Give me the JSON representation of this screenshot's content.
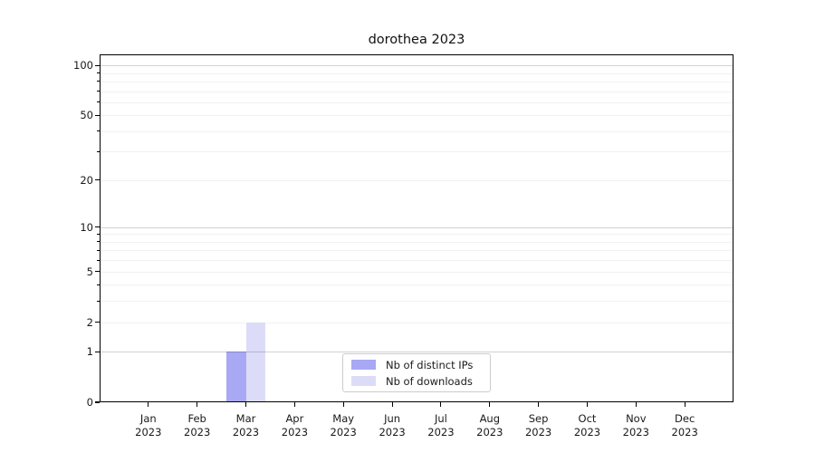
{
  "chart_data": {
    "type": "bar",
    "title": "dorothea 2023",
    "categories_month": [
      "Jan",
      "Feb",
      "Mar",
      "Apr",
      "May",
      "Jun",
      "Jul",
      "Aug",
      "Sep",
      "Oct",
      "Nov",
      "Dec"
    ],
    "categories_year": "2023",
    "series": [
      {
        "name": "Nb of distinct IPs",
        "color": "#a8a8f5",
        "values": [
          0,
          0,
          1,
          0,
          0,
          0,
          0,
          0,
          0,
          0,
          0,
          0
        ]
      },
      {
        "name": "Nb of downloads",
        "color": "#dcdcf9",
        "values": [
          0,
          0,
          2,
          0,
          0,
          0,
          0,
          0,
          0,
          0,
          0,
          0
        ]
      }
    ],
    "y_scale": "log1p",
    "y_ticks_labeled": [
      0,
      1,
      2,
      5,
      10,
      20,
      50,
      100
    ],
    "y_major_grid": [
      1,
      10,
      100
    ],
    "y_minor_grid": [
      2,
      3,
      4,
      5,
      6,
      7,
      8,
      9,
      20,
      30,
      40,
      50,
      60,
      70,
      80,
      90
    ],
    "ylim": [
      0,
      116.3
    ],
    "grid": true,
    "legend_position": "lower center"
  },
  "style": {
    "background": "#ffffff",
    "axis_color": "#000000",
    "text_color": "#1a1a1a",
    "grid_major": "rgba(0,0,0,0.18)",
    "grid_minor": "rgba(0,0,0,0.055)",
    "legend_border": "#cccccc",
    "legend_background": "#ffffff"
  }
}
